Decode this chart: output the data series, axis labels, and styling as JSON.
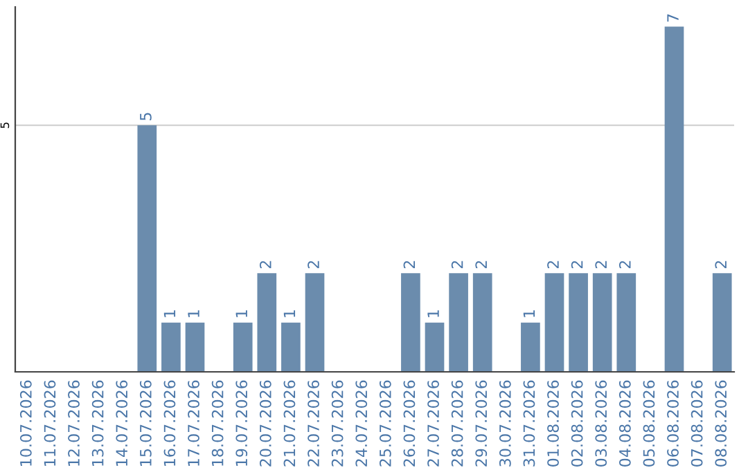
{
  "chart_data": {
    "type": "bar",
    "categories": [
      "10.07.2026",
      "11.07.2026",
      "12.07.2026",
      "13.07.2026",
      "14.07.2026",
      "15.07.2026",
      "16.07.2026",
      "17.07.2026",
      "18.07.2026",
      "19.07.2026",
      "20.07.2026",
      "21.07.2026",
      "22.07.2026",
      "23.07.2026",
      "24.07.2026",
      "25.07.2026",
      "26.07.2026",
      "27.07.2026",
      "28.07.2026",
      "29.07.2026",
      "30.07.2026",
      "31.07.2026",
      "01.08.2026",
      "02.08.2026",
      "03.08.2026",
      "04.08.2026",
      "05.08.2026",
      "06.08.2026",
      "07.08.2026",
      "08.08.2026"
    ],
    "values": [
      0,
      0,
      0,
      0,
      0,
      5,
      1,
      1,
      0,
      1,
      2,
      1,
      2,
      0,
      0,
      0,
      2,
      1,
      2,
      2,
      0,
      1,
      2,
      2,
      2,
      2,
      0,
      7,
      0,
      2
    ],
    "value_labels": [
      null,
      null,
      null,
      null,
      null,
      "5",
      "1",
      "1",
      null,
      "1",
      "2",
      "1",
      "2",
      null,
      null,
      null,
      "2",
      "1",
      "2",
      "2",
      null,
      "1",
      "2",
      "2",
      "2",
      "2",
      null,
      "7",
      null,
      "2"
    ],
    "color": "#6b8cad",
    "ylim": [
      0,
      7.4
    ],
    "yticks": [
      5
    ],
    "grid": "y"
  }
}
